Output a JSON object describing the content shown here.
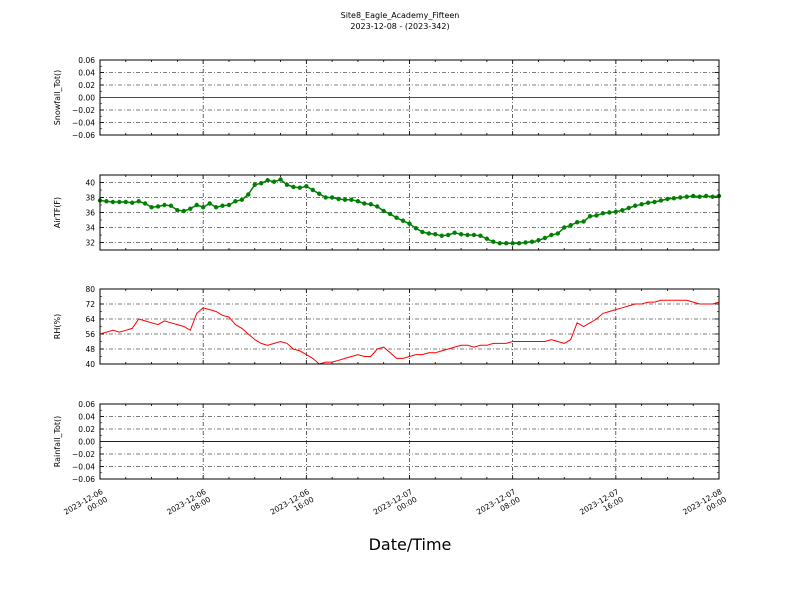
{
  "figure": {
    "title_line1": "Site8_Eagle_Academy_Fifteen",
    "title_line2": "2023-12-08 - (2023-342)",
    "xlabel": "Date/Time"
  },
  "chart_data": [
    {
      "type": "line",
      "ylabel": "Snowfall_Tot()",
      "xlim": [
        0,
        48
      ],
      "ylim": [
        -0.06,
        0.06
      ],
      "yticks": [
        "0.06",
        "0.04",
        "0.02",
        "0.00",
        "−0.02",
        "−0.04",
        "−0.06"
      ],
      "grid": true,
      "series": [
        {
          "color": "#ff0000",
          "marker": false,
          "x": [
            0,
            48
          ],
          "y": [
            0,
            0
          ]
        }
      ]
    },
    {
      "type": "line",
      "ylabel": "AirTF(F)",
      "xlim": [
        0,
        48
      ],
      "ylim": [
        31,
        41
      ],
      "yticks": [
        "40",
        "38",
        "36",
        "34",
        "32"
      ],
      "grid": true,
      "series": [
        {
          "color": "#008000",
          "marker": true,
          "x": [
            0,
            0.5,
            1,
            1.5,
            2,
            2.5,
            3,
            3.5,
            4,
            4.5,
            5,
            5.5,
            6,
            6.5,
            7,
            7.5,
            8,
            8.5,
            9,
            9.5,
            10,
            10.5,
            11,
            11.5,
            12,
            12.5,
            13,
            13.5,
            14,
            14.5,
            15,
            15.5,
            16,
            16.5,
            17,
            17.5,
            18,
            18.5,
            19,
            19.5,
            20,
            20.5,
            21,
            21.5,
            22,
            22.5,
            23,
            23.5,
            24,
            24.5,
            25,
            25.5,
            26,
            26.5,
            27,
            27.5,
            28,
            28.5,
            29,
            29.5,
            30,
            30.5,
            31,
            31.5,
            32,
            32.5,
            33,
            33.5,
            34,
            34.5,
            35,
            35.5,
            36,
            36.5,
            37,
            37.5,
            38,
            38.5,
            39,
            39.5,
            40,
            40.5,
            41,
            41.5,
            42,
            42.5,
            43,
            43.5,
            44,
            44.5,
            45,
            45.5,
            46,
            46.5,
            47,
            47.5,
            48
          ],
          "y": [
            37.6,
            37.5,
            37.4,
            37.4,
            37.4,
            37.3,
            37.5,
            37.2,
            36.7,
            36.8,
            37.0,
            36.9,
            36.3,
            36.2,
            36.5,
            37.0,
            36.7,
            37.2,
            36.7,
            36.9,
            37.0,
            37.5,
            37.7,
            38.4,
            39.7,
            39.9,
            40.3,
            40.1,
            40.4,
            39.7,
            39.4,
            39.3,
            39.5,
            39.0,
            38.5,
            38.0,
            38.0,
            37.8,
            37.7,
            37.7,
            37.5,
            37.2,
            37.1,
            36.8,
            36.2,
            35.8,
            35.3,
            34.9,
            34.5,
            33.9,
            33.4,
            33.2,
            33.1,
            32.9,
            33.0,
            33.3,
            33.1,
            33.0,
            33.0,
            32.9,
            32.5,
            32.1,
            31.9,
            31.9,
            31.9,
            31.9,
            32.0,
            32.1,
            32.3,
            32.6,
            33.0,
            33.2,
            34.0,
            34.3,
            34.7,
            34.8,
            35.5,
            35.6,
            35.9,
            36.0,
            36.1,
            36.3,
            36.6,
            36.9,
            37.1,
            37.3,
            37.4,
            37.6,
            37.8,
            37.9,
            38.0,
            38.1,
            38.2,
            38.1,
            38.2,
            38.1,
            38.2
          ]
        }
      ]
    },
    {
      "type": "line",
      "ylabel": "RH(%)",
      "xlim": [
        0,
        48
      ],
      "ylim": [
        40,
        80
      ],
      "yticks": [
        "80",
        "72",
        "64",
        "56",
        "48",
        "40"
      ],
      "grid": true,
      "series": [
        {
          "color": "#ff0000",
          "marker": false,
          "x": [
            0,
            0.5,
            1,
            1.5,
            2,
            2.5,
            3,
            3.5,
            4,
            4.5,
            5,
            5.5,
            6,
            6.5,
            7,
            7.5,
            8,
            8.5,
            9,
            9.5,
            10,
            10.5,
            11,
            11.5,
            12,
            12.5,
            13,
            13.5,
            14,
            14.5,
            15,
            15.5,
            16,
            16.5,
            17,
            17.5,
            18,
            18.5,
            19,
            19.5,
            20,
            20.5,
            21,
            21.5,
            22,
            22.5,
            23,
            23.5,
            24,
            24.5,
            25,
            25.5,
            26,
            26.5,
            27,
            27.5,
            28,
            28.5,
            29,
            29.5,
            30,
            30.5,
            31,
            31.5,
            32,
            32.5,
            33,
            33.5,
            34,
            34.5,
            35,
            35.5,
            36,
            36.5,
            37,
            37.5,
            38,
            38.5,
            39,
            39.5,
            40,
            40.5,
            41,
            41.5,
            42,
            42.5,
            43,
            43.5,
            44,
            44.5,
            45,
            45.5,
            46,
            46.5,
            47,
            47.5,
            48
          ],
          "y": [
            56,
            57,
            58,
            57,
            58,
            59,
            64,
            63,
            62,
            61,
            63,
            62,
            61,
            60,
            58,
            67,
            70,
            69,
            68,
            66,
            65,
            61,
            59,
            56,
            53,
            51,
            50,
            51,
            52,
            51,
            48,
            47,
            45,
            43,
            40,
            41,
            41,
            42,
            43,
            44,
            45,
            44,
            44,
            48,
            49,
            46,
            43,
            43,
            44,
            45,
            45,
            46,
            46,
            47,
            48,
            49,
            50,
            50,
            49,
            50,
            50,
            51,
            51,
            51,
            52,
            52,
            52,
            52,
            52,
            52,
            53,
            52,
            51,
            53,
            62,
            60,
            62,
            64,
            67,
            68,
            69,
            70,
            71,
            72,
            72,
            73,
            73,
            74,
            74,
            74,
            74,
            74,
            73,
            72,
            72,
            72,
            73
          ]
        }
      ]
    },
    {
      "type": "line",
      "ylabel": "Rainfall_Tot()",
      "xlim": [
        0,
        48
      ],
      "ylim": [
        -0.06,
        0.06
      ],
      "yticks": [
        "0.06",
        "0.04",
        "0.02",
        "0.00",
        "−0.02",
        "−0.04",
        "−0.06"
      ],
      "xticks": [
        {
          "value": 0,
          "line1": "2023-12-06",
          "line2": "00:00"
        },
        {
          "value": 8,
          "line1": "2023-12-06",
          "line2": "08:00"
        },
        {
          "value": 16,
          "line1": "2023-12-06",
          "line2": "16:00"
        },
        {
          "value": 24,
          "line1": "2023-12-07",
          "line2": "00:00"
        },
        {
          "value": 32,
          "line1": "2023-12-07",
          "line2": "08:00"
        },
        {
          "value": 40,
          "line1": "2023-12-07",
          "line2": "16:00"
        },
        {
          "value": 48,
          "line1": "2023-12-08",
          "line2": "00:00"
        }
      ],
      "grid": true,
      "series": [
        {
          "color": "#0000ff",
          "marker": false,
          "x": [
            0,
            48
          ],
          "y": [
            0,
            0
          ]
        }
      ]
    }
  ]
}
